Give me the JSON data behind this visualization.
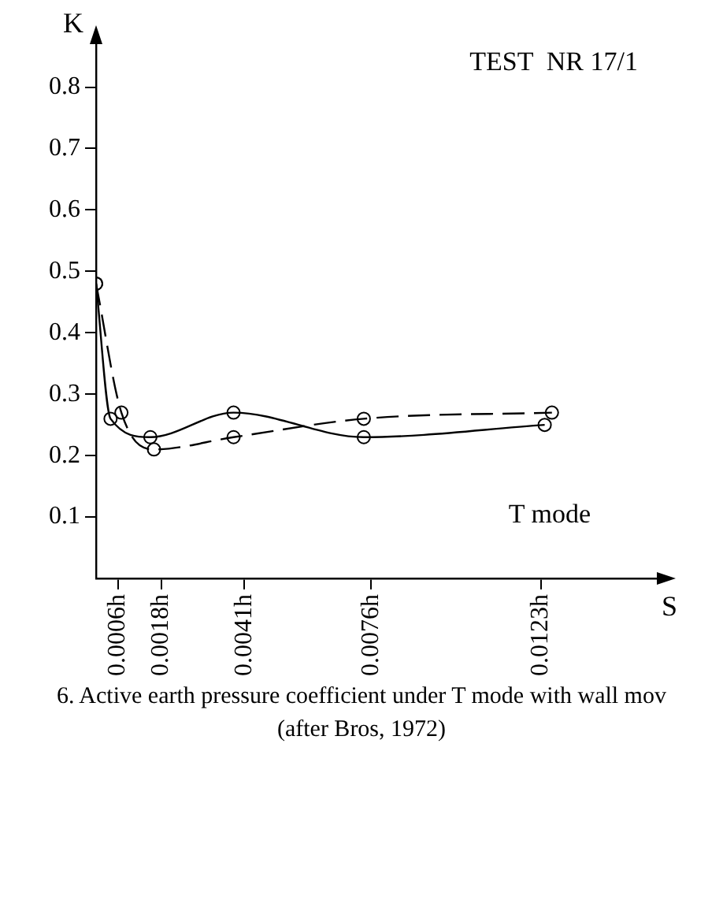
{
  "chart_data": {
    "type": "line",
    "xlabel": "S",
    "ylabel": "K",
    "annotations": [
      "TEST  NR 17/1",
      "T mode",
      "6. Active earth pressure coefficient under T mode with wall mov",
      "(after Bros, 1972)"
    ],
    "series": [
      {
        "color": "#000000",
        "line_style": "solid",
        "x": [
          0,
          0.0004,
          0.0015,
          0.0038,
          0.0074,
          0.0124
        ],
        "values": [
          0.48,
          0.26,
          0.23,
          0.27,
          0.23,
          0.25
        ]
      },
      {
        "color": "#000000",
        "line_style": "dashed",
        "x": [
          0,
          0.0007,
          0.0016,
          0.0038,
          0.0074,
          0.0126
        ],
        "values": [
          0.48,
          0.27,
          0.21,
          0.23,
          0.26,
          0.27
        ]
      }
    ],
    "xlim": [
      0,
      0.0155
    ],
    "xticks": [
      {
        "value": 0.0006,
        "label": "0.0006h"
      },
      {
        "value": 0.0018,
        "label": "0.0018h"
      },
      {
        "value": 0.0041,
        "label": "0.0041h"
      },
      {
        "value": 0.0076,
        "label": "0.0076h"
      },
      {
        "value": 0.0123,
        "label": "0.0123h"
      }
    ],
    "ylim": [
      0,
      0.87
    ],
    "yticks": [
      0.1,
      0.2,
      0.3,
      0.4,
      0.5,
      0.6,
      0.7,
      0.8
    ],
    "grid": false,
    "legend": false,
    "marker": "circle"
  }
}
